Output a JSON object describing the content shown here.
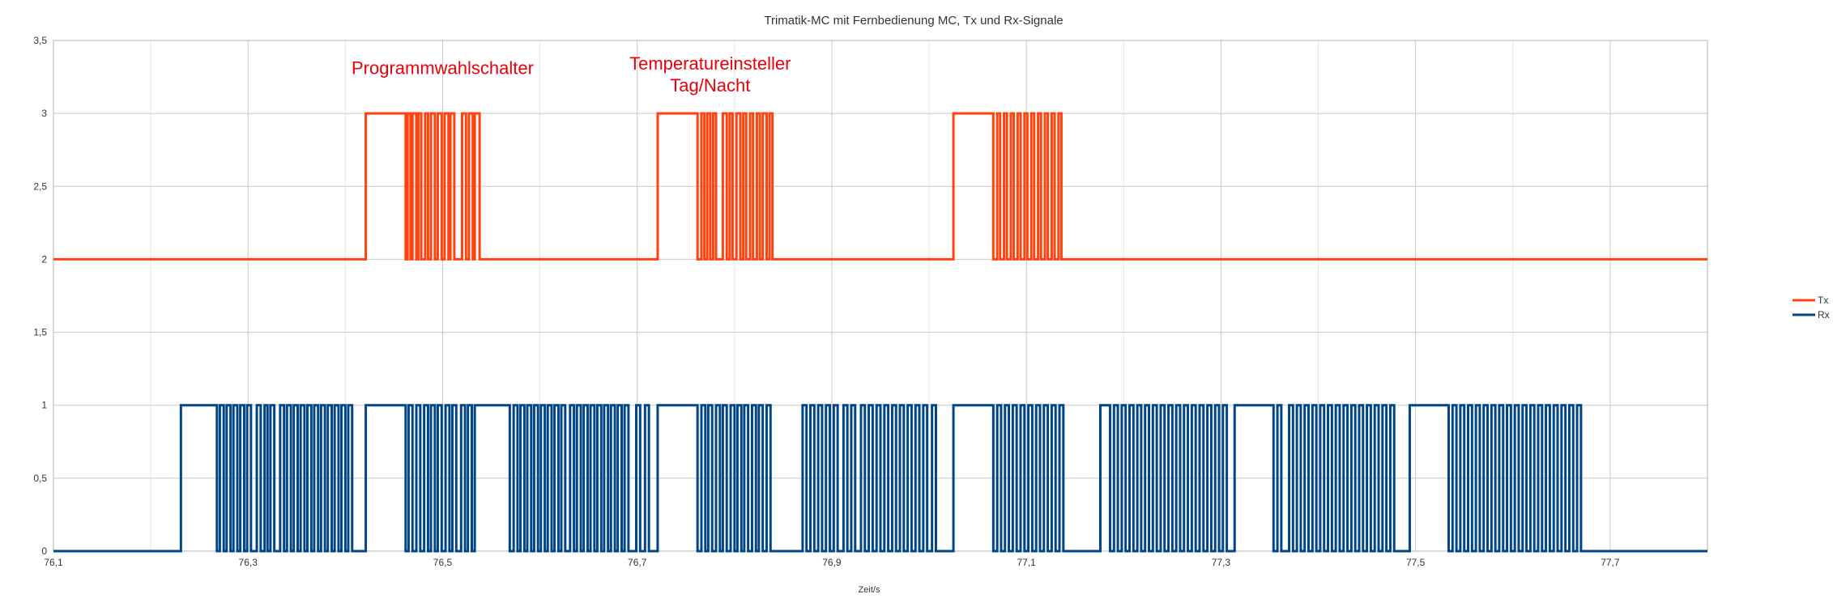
{
  "chart_data": {
    "type": "line",
    "step": true,
    "title": "Trimatik-MC mit Fernbedienung MC, Tx und Rx-Signale",
    "xlabel": "Zeit/s",
    "ylabel": "",
    "xlim": [
      76.1,
      77.8
    ],
    "ylim": [
      0,
      3.5
    ],
    "x_ticks": [
      76.1,
      76.3,
      76.5,
      76.7,
      76.9,
      77.1,
      77.3,
      77.5,
      77.7
    ],
    "x_tick_labels": [
      "76,1",
      "76,3",
      "76,5",
      "76,7",
      "76,9",
      "77,1",
      "77,3",
      "77,5",
      "77,7"
    ],
    "y_ticks": [
      0,
      0.5,
      1,
      1.5,
      2,
      2.5,
      3,
      3.5
    ],
    "y_tick_labels": [
      "0",
      "0,5",
      "1",
      "1,5",
      "2",
      "2,5",
      "3",
      "3,5"
    ],
    "grid": true,
    "legend_position": "right",
    "annotations": [
      {
        "lines": [
          "Programmwahlschalter"
        ],
        "x": 76.5,
        "y": 3.27,
        "color": "#e8000b"
      },
      {
        "lines": [
          "Temperatureinsteller",
          "Tag/Nacht"
        ],
        "x": 76.775,
        "y": 3.3,
        "color": "#e8000b"
      }
    ],
    "series": [
      {
        "name": "Tx",
        "color": "#ff420e",
        "low": 2,
        "high": 3,
        "pulses": [
          [
            76.421,
            76.462
          ],
          [
            76.464,
            76.467
          ],
          [
            76.469,
            76.473
          ],
          [
            76.475,
            76.478
          ],
          [
            76.482,
            76.485
          ],
          [
            76.488,
            76.492
          ],
          [
            76.495,
            76.499
          ],
          [
            76.502,
            76.506
          ],
          [
            76.508,
            76.512
          ],
          [
            76.52,
            76.524
          ],
          [
            76.527,
            76.531
          ],
          [
            76.533,
            76.538
          ],
          [
            76.721,
            76.762
          ],
          [
            76.766,
            76.769
          ],
          [
            76.772,
            76.775
          ],
          [
            76.778,
            76.781
          ],
          [
            76.788,
            76.792
          ],
          [
            76.795,
            76.798
          ],
          [
            76.802,
            76.806
          ],
          [
            76.809,
            76.812
          ],
          [
            76.816,
            76.819
          ],
          [
            76.823,
            76.826
          ],
          [
            76.829,
            76.833
          ],
          [
            76.836,
            76.839
          ],
          [
            77.025,
            77.066
          ],
          [
            77.07,
            77.073
          ],
          [
            77.077,
            77.08
          ],
          [
            77.084,
            77.087
          ],
          [
            77.091,
            77.094
          ],
          [
            77.098,
            77.101
          ],
          [
            77.105,
            77.108
          ],
          [
            77.112,
            77.115
          ],
          [
            77.119,
            77.122
          ],
          [
            77.126,
            77.129
          ],
          [
            77.133,
            77.136
          ]
        ]
      },
      {
        "name": "Rx",
        "color": "#004586",
        "low": 0,
        "high": 1,
        "pulses": [
          [
            76.231,
            76.268
          ],
          [
            76.271,
            76.275
          ],
          [
            76.278,
            76.282
          ],
          [
            76.285,
            76.289
          ],
          [
            76.292,
            76.296
          ],
          [
            76.299,
            76.303
          ],
          [
            76.309,
            76.313
          ],
          [
            76.317,
            76.32
          ],
          [
            76.323,
            76.327
          ],
          [
            76.333,
            76.337
          ],
          [
            76.34,
            76.344
          ],
          [
            76.347,
            76.351
          ],
          [
            76.354,
            76.358
          ],
          [
            76.361,
            76.365
          ],
          [
            76.368,
            76.372
          ],
          [
            76.375,
            76.379
          ],
          [
            76.382,
            76.386
          ],
          [
            76.389,
            76.393
          ],
          [
            76.396,
            76.4
          ],
          [
            76.403,
            76.407
          ],
          [
            76.421,
            76.462
          ],
          [
            76.465,
            76.469
          ],
          [
            76.473,
            76.477
          ],
          [
            76.481,
            76.485
          ],
          [
            76.488,
            76.492
          ],
          [
            76.495,
            76.499
          ],
          [
            76.503,
            76.507
          ],
          [
            76.51,
            76.514
          ],
          [
            76.519,
            76.523
          ],
          [
            76.526,
            76.53
          ],
          [
            76.533,
            76.569
          ],
          [
            76.573,
            76.577
          ],
          [
            76.58,
            76.584
          ],
          [
            76.587,
            76.591
          ],
          [
            76.594,
            76.598
          ],
          [
            76.601,
            76.605
          ],
          [
            76.608,
            76.612
          ],
          [
            76.615,
            76.619
          ],
          [
            76.622,
            76.626
          ],
          [
            76.631,
            76.635
          ],
          [
            76.638,
            76.642
          ],
          [
            76.645,
            76.649
          ],
          [
            76.652,
            76.656
          ],
          [
            76.659,
            76.663
          ],
          [
            76.666,
            76.67
          ],
          [
            76.673,
            76.677
          ],
          [
            76.68,
            76.684
          ],
          [
            76.687,
            76.691
          ],
          [
            76.699,
            76.703
          ],
          [
            76.708,
            76.712
          ],
          [
            76.721,
            76.762
          ],
          [
            76.766,
            76.77
          ],
          [
            76.773,
            76.777
          ],
          [
            76.781,
            76.785
          ],
          [
            76.788,
            76.792
          ],
          [
            76.796,
            76.8
          ],
          [
            76.803,
            76.807
          ],
          [
            76.81,
            76.814
          ],
          [
            76.818,
            76.822
          ],
          [
            76.825,
            76.829
          ],
          [
            76.833,
            76.837
          ],
          [
            76.87,
            76.874
          ],
          [
            76.878,
            76.882
          ],
          [
            76.886,
            76.89
          ],
          [
            76.894,
            76.898
          ],
          [
            76.902,
            76.906
          ],
          [
            76.912,
            76.916
          ],
          [
            76.92,
            76.924
          ],
          [
            76.93,
            76.934
          ],
          [
            76.938,
            76.942
          ],
          [
            76.946,
            76.95
          ],
          [
            76.954,
            76.958
          ],
          [
            76.962,
            76.966
          ],
          [
            76.97,
            76.974
          ],
          [
            76.978,
            76.982
          ],
          [
            76.986,
            76.99
          ],
          [
            76.994,
            76.998
          ],
          [
            77.003,
            77.007
          ],
          [
            77.025,
            77.066
          ],
          [
            77.07,
            77.074
          ],
          [
            77.078,
            77.082
          ],
          [
            77.086,
            77.09
          ],
          [
            77.094,
            77.098
          ],
          [
            77.102,
            77.106
          ],
          [
            77.11,
            77.114
          ],
          [
            77.118,
            77.122
          ],
          [
            77.126,
            77.13
          ],
          [
            77.134,
            77.138
          ],
          [
            77.176,
            77.186
          ],
          [
            77.19,
            77.194
          ],
          [
            77.198,
            77.202
          ],
          [
            77.206,
            77.21
          ],
          [
            77.214,
            77.218
          ],
          [
            77.222,
            77.226
          ],
          [
            77.23,
            77.234
          ],
          [
            77.238,
            77.242
          ],
          [
            77.246,
            77.25
          ],
          [
            77.254,
            77.258
          ],
          [
            77.262,
            77.266
          ],
          [
            77.27,
            77.274
          ],
          [
            77.278,
            77.282
          ],
          [
            77.286,
            77.29
          ],
          [
            77.294,
            77.298
          ],
          [
            77.302,
            77.306
          ],
          [
            77.314,
            77.354
          ],
          [
            77.358,
            77.362
          ],
          [
            77.37,
            77.374
          ],
          [
            77.378,
            77.382
          ],
          [
            77.386,
            77.39
          ],
          [
            77.394,
            77.398
          ],
          [
            77.402,
            77.406
          ],
          [
            77.41,
            77.414
          ],
          [
            77.418,
            77.422
          ],
          [
            77.426,
            77.43
          ],
          [
            77.434,
            77.438
          ],
          [
            77.442,
            77.446
          ],
          [
            77.45,
            77.454
          ],
          [
            77.458,
            77.462
          ],
          [
            77.466,
            77.47
          ],
          [
            77.474,
            77.478
          ],
          [
            77.494,
            77.534
          ],
          [
            77.538,
            77.542
          ],
          [
            77.546,
            77.55
          ],
          [
            77.554,
            77.558
          ],
          [
            77.562,
            77.566
          ],
          [
            77.57,
            77.574
          ],
          [
            77.578,
            77.582
          ],
          [
            77.586,
            77.59
          ],
          [
            77.594,
            77.598
          ],
          [
            77.602,
            77.606
          ],
          [
            77.61,
            77.614
          ],
          [
            77.618,
            77.622
          ],
          [
            77.626,
            77.63
          ],
          [
            77.634,
            77.638
          ],
          [
            77.642,
            77.646
          ],
          [
            77.65,
            77.654
          ],
          [
            77.658,
            77.662
          ],
          [
            77.666,
            77.67
          ]
        ]
      }
    ]
  }
}
